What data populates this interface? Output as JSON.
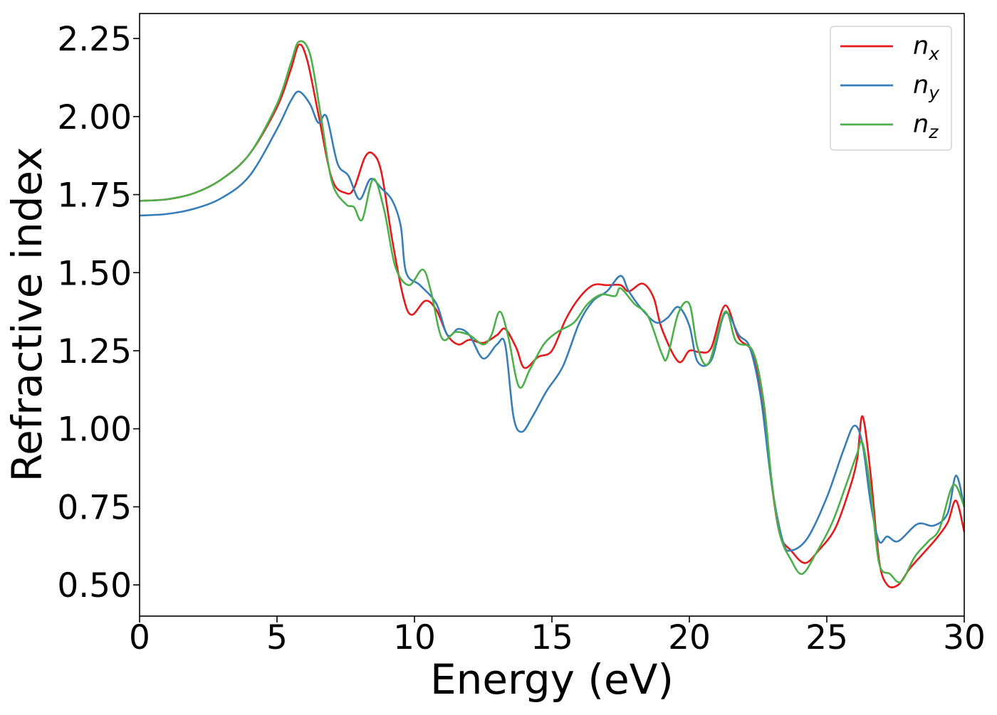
{
  "chart_data": {
    "type": "line",
    "title": "",
    "xlabel": "Energy (eV)",
    "ylabel": "Refractive index",
    "xlim": [
      0,
      30
    ],
    "ylim": [
      0.4,
      2.33
    ],
    "xticks": [
      0,
      5,
      10,
      15,
      20,
      25,
      30
    ],
    "xtick_labels": [
      "0",
      "5",
      "10",
      "15",
      "20",
      "25",
      "30"
    ],
    "yticks": [
      0.5,
      0.75,
      1.0,
      1.25,
      1.5,
      1.75,
      2.0,
      2.25
    ],
    "ytick_labels": [
      "0.50",
      "0.75",
      "1.00",
      "1.25",
      "1.50",
      "1.75",
      "2.00",
      "2.25"
    ],
    "grid": false,
    "legend_position": "top-right",
    "series": [
      {
        "name": "n",
        "subscript": "x",
        "color": "#e41a1c",
        "points": [
          [
            0,
            1.73
          ],
          [
            1,
            1.735
          ],
          [
            2,
            1.755
          ],
          [
            3,
            1.8
          ],
          [
            4,
            1.88
          ],
          [
            5,
            2.03
          ],
          [
            5.5,
            2.15
          ],
          [
            5.8,
            2.23
          ],
          [
            6.1,
            2.18
          ],
          [
            6.5,
            2.01
          ],
          [
            7,
            1.8
          ],
          [
            7.5,
            1.755
          ],
          [
            7.8,
            1.77
          ],
          [
            8.2,
            1.87
          ],
          [
            8.5,
            1.88
          ],
          [
            8.8,
            1.82
          ],
          [
            9.2,
            1.6
          ],
          [
            9.6,
            1.42
          ],
          [
            9.9,
            1.365
          ],
          [
            10.4,
            1.41
          ],
          [
            10.8,
            1.38
          ],
          [
            11.2,
            1.3
          ],
          [
            11.6,
            1.27
          ],
          [
            12,
            1.285
          ],
          [
            12.5,
            1.275
          ],
          [
            13,
            1.3
          ],
          [
            13.3,
            1.32
          ],
          [
            13.7,
            1.26
          ],
          [
            14,
            1.195
          ],
          [
            14.5,
            1.23
          ],
          [
            15,
            1.25
          ],
          [
            15.5,
            1.35
          ],
          [
            16,
            1.42
          ],
          [
            16.5,
            1.46
          ],
          [
            17,
            1.46
          ],
          [
            17.5,
            1.46
          ],
          [
            17.8,
            1.44
          ],
          [
            18.3,
            1.465
          ],
          [
            18.7,
            1.42
          ],
          [
            19,
            1.32
          ],
          [
            19.6,
            1.215
          ],
          [
            20,
            1.25
          ],
          [
            20.4,
            1.245
          ],
          [
            20.8,
            1.26
          ],
          [
            21.3,
            1.395
          ],
          [
            21.8,
            1.29
          ],
          [
            22.3,
            1.24
          ],
          [
            22.7,
            1.05
          ],
          [
            23,
            0.82
          ],
          [
            23.3,
            0.66
          ],
          [
            23.7,
            0.61
          ],
          [
            24.2,
            0.57
          ],
          [
            24.7,
            0.61
          ],
          [
            25.3,
            0.68
          ],
          [
            25.8,
            0.8
          ],
          [
            26.1,
            0.9
          ],
          [
            26.3,
            1.04
          ],
          [
            26.6,
            0.85
          ],
          [
            26.9,
            0.58
          ],
          [
            27.2,
            0.5
          ],
          [
            27.6,
            0.5
          ],
          [
            28,
            0.55
          ],
          [
            28.5,
            0.6
          ],
          [
            29,
            0.65
          ],
          [
            29.4,
            0.7
          ],
          [
            29.7,
            0.77
          ],
          [
            30,
            0.67
          ]
        ]
      },
      {
        "name": "n",
        "subscript": "y",
        "color": "#377eb8",
        "points": [
          [
            0,
            1.683
          ],
          [
            1,
            1.688
          ],
          [
            2,
            1.705
          ],
          [
            3,
            1.74
          ],
          [
            4,
            1.81
          ],
          [
            5,
            1.96
          ],
          [
            5.5,
            2.05
          ],
          [
            5.8,
            2.08
          ],
          [
            6.2,
            2.04
          ],
          [
            6.5,
            1.98
          ],
          [
            6.8,
            2.0
          ],
          [
            7.2,
            1.85
          ],
          [
            7.6,
            1.81
          ],
          [
            8,
            1.735
          ],
          [
            8.4,
            1.8
          ],
          [
            8.8,
            1.77
          ],
          [
            9.2,
            1.73
          ],
          [
            9.5,
            1.65
          ],
          [
            9.7,
            1.5
          ],
          [
            10.2,
            1.46
          ],
          [
            10.8,
            1.4
          ],
          [
            11.2,
            1.3
          ],
          [
            11.6,
            1.32
          ],
          [
            12,
            1.3
          ],
          [
            12.5,
            1.225
          ],
          [
            13,
            1.27
          ],
          [
            13.3,
            1.27
          ],
          [
            13.6,
            1.04
          ],
          [
            13.9,
            0.99
          ],
          [
            14.3,
            1.04
          ],
          [
            14.8,
            1.12
          ],
          [
            15.4,
            1.2
          ],
          [
            16,
            1.34
          ],
          [
            16.5,
            1.41
          ],
          [
            17,
            1.44
          ],
          [
            17.5,
            1.49
          ],
          [
            17.8,
            1.44
          ],
          [
            18.3,
            1.38
          ],
          [
            18.8,
            1.34
          ],
          [
            19.2,
            1.355
          ],
          [
            19.6,
            1.39
          ],
          [
            20,
            1.33
          ],
          [
            20.3,
            1.215
          ],
          [
            20.8,
            1.22
          ],
          [
            21.3,
            1.37
          ],
          [
            21.8,
            1.3
          ],
          [
            22.2,
            1.26
          ],
          [
            22.6,
            1.1
          ],
          [
            23,
            0.82
          ],
          [
            23.4,
            0.64
          ],
          [
            23.7,
            0.61
          ],
          [
            24.3,
            0.65
          ],
          [
            25,
            0.78
          ],
          [
            25.6,
            0.93
          ],
          [
            26,
            1.01
          ],
          [
            26.3,
            0.95
          ],
          [
            26.6,
            0.76
          ],
          [
            26.9,
            0.64
          ],
          [
            27.2,
            0.655
          ],
          [
            27.6,
            0.64
          ],
          [
            28.3,
            0.695
          ],
          [
            28.9,
            0.69
          ],
          [
            29.4,
            0.73
          ],
          [
            29.7,
            0.85
          ],
          [
            30,
            0.75
          ]
        ]
      },
      {
        "name": "n",
        "subscript": "z",
        "color": "#4daf4a",
        "points": [
          [
            0,
            1.73
          ],
          [
            1,
            1.735
          ],
          [
            2,
            1.755
          ],
          [
            3,
            1.8
          ],
          [
            4,
            1.88
          ],
          [
            5,
            2.04
          ],
          [
            5.5,
            2.17
          ],
          [
            5.8,
            2.24
          ],
          [
            6.2,
            2.2
          ],
          [
            6.6,
            2.0
          ],
          [
            7,
            1.79
          ],
          [
            7.5,
            1.72
          ],
          [
            7.8,
            1.71
          ],
          [
            8.1,
            1.67
          ],
          [
            8.5,
            1.8
          ],
          [
            8.9,
            1.7
          ],
          [
            9.3,
            1.52
          ],
          [
            9.8,
            1.46
          ],
          [
            10.3,
            1.51
          ],
          [
            10.6,
            1.44
          ],
          [
            11,
            1.29
          ],
          [
            11.5,
            1.31
          ],
          [
            12,
            1.3
          ],
          [
            12.5,
            1.27
          ],
          [
            12.8,
            1.3
          ],
          [
            13.1,
            1.375
          ],
          [
            13.4,
            1.3
          ],
          [
            13.8,
            1.135
          ],
          [
            14.2,
            1.19
          ],
          [
            14.7,
            1.27
          ],
          [
            15.2,
            1.31
          ],
          [
            15.8,
            1.34
          ],
          [
            16.3,
            1.4
          ],
          [
            16.8,
            1.43
          ],
          [
            17.3,
            1.425
          ],
          [
            17.5,
            1.45
          ],
          [
            18,
            1.4
          ],
          [
            18.5,
            1.36
          ],
          [
            19,
            1.24
          ],
          [
            19.2,
            1.23
          ],
          [
            19.6,
            1.37
          ],
          [
            20,
            1.4
          ],
          [
            20.3,
            1.26
          ],
          [
            20.7,
            1.21
          ],
          [
            21.3,
            1.375
          ],
          [
            21.7,
            1.28
          ],
          [
            22.3,
            1.25
          ],
          [
            22.7,
            1.09
          ],
          [
            23,
            0.83
          ],
          [
            23.3,
            0.66
          ],
          [
            23.7,
            0.58
          ],
          [
            24.1,
            0.535
          ],
          [
            24.6,
            0.6
          ],
          [
            25.2,
            0.7
          ],
          [
            25.7,
            0.82
          ],
          [
            26.1,
            0.92
          ],
          [
            26.3,
            0.955
          ],
          [
            26.6,
            0.8
          ],
          [
            26.9,
            0.57
          ],
          [
            27.3,
            0.535
          ],
          [
            27.7,
            0.51
          ],
          [
            28.2,
            0.59
          ],
          [
            28.7,
            0.64
          ],
          [
            29.1,
            0.68
          ],
          [
            29.6,
            0.82
          ],
          [
            30,
            0.75
          ]
        ]
      }
    ]
  }
}
